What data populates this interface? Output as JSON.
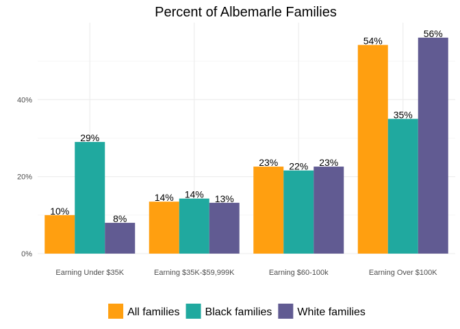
{
  "chart_data": {
    "type": "bar",
    "title": "Percent of Albemarle Families",
    "xlabel": "",
    "ylabel": "",
    "categories": [
      "Earning Under $35K",
      "Earning $35K-$59,999K",
      "Earning $60-100k",
      "Earning Over $100K"
    ],
    "series": [
      {
        "name": "All families",
        "color": "#FF9F10",
        "values": [
          10,
          13.5,
          22.6,
          54.2
        ],
        "labels": [
          "10%",
          "14%",
          "23%",
          "54%"
        ]
      },
      {
        "name": "Black families",
        "color": "#20A99F",
        "values": [
          29,
          14.3,
          21.6,
          35
        ],
        "labels": [
          "29%",
          "14%",
          "22%",
          "35%"
        ]
      },
      {
        "name": "White families",
        "color": "#615B92",
        "values": [
          8,
          13.2,
          22.6,
          56.1
        ],
        "labels": [
          "8%",
          "13%",
          "23%",
          "56%"
        ]
      }
    ],
    "ylim": [
      0,
      60
    ],
    "yticks": [
      0,
      20,
      40
    ],
    "ytick_labels": [
      "0%",
      "20%",
      "40%"
    ],
    "grid": true,
    "legend_position": "bottom"
  }
}
